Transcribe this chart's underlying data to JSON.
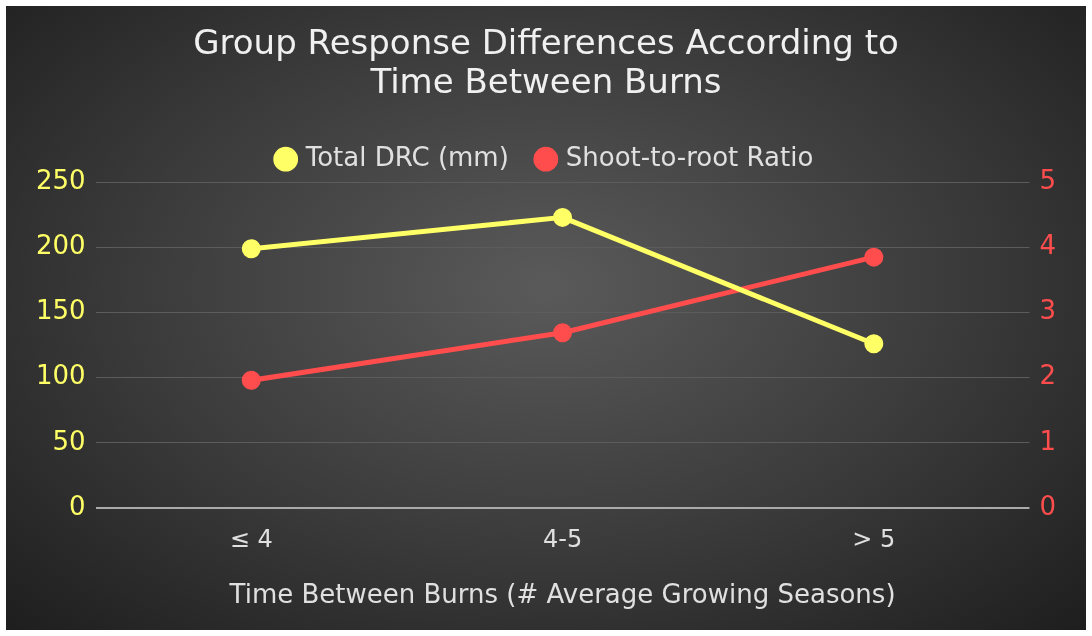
{
  "chart_data": {
    "type": "line",
    "title": "Group Response Differences According to Time Between Burns",
    "xlabel": "Time Between Burns (# Average Growing Seasons)",
    "categories": [
      "≤ 4",
      "4-5",
      "> 5"
    ],
    "series": [
      {
        "name": "Total DRC (mm)",
        "color": "#ffff66",
        "values": [
          199,
          223,
          126
        ]
      },
      {
        "name": "Shoot-to-root Ratio",
        "color": "#ff4d4d",
        "values": [
          1.96,
          2.69,
          3.85
        ],
        "axis": "y2"
      }
    ],
    "ylim": [
      0,
      250
    ],
    "yticks": [
      0,
      50,
      100,
      150,
      200,
      250
    ],
    "y2lim": [
      0,
      5
    ],
    "y2ticks": [
      0,
      1,
      2,
      3,
      4,
      5
    ],
    "grid": "y",
    "legend": "top",
    "marker": "circle",
    "line_style": "solid"
  }
}
